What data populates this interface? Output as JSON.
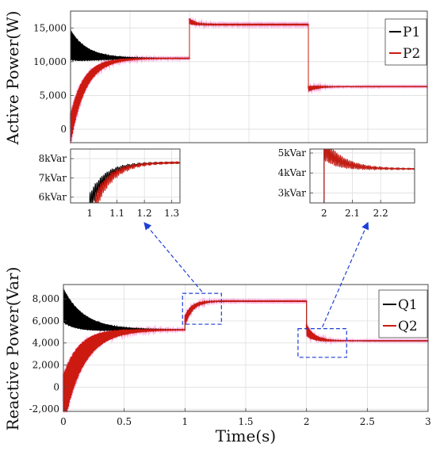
{
  "chart_data": [
    {
      "id": "active",
      "type": "line",
      "ylabel": "Active Power(W)",
      "xlim": [
        0,
        3
      ],
      "ylim": [
        -2000,
        17500
      ],
      "yticks": [
        0,
        5000,
        10000,
        15000
      ],
      "ytick_labels": [
        "0",
        "5,000",
        "10,000",
        "15,000"
      ],
      "legend": "top-right",
      "grid": true,
      "series": [
        {
          "name": "P1",
          "color": "#000000",
          "segments": [
            {
              "t0": 0,
              "t1": 1,
              "initial": 12500,
              "final": 10500,
              "decay": 0.12,
              "amp": 2300
            },
            {
              "t0": 1,
              "t1": 2,
              "initial": 16000,
              "final": 15500,
              "decay": 0.05,
              "amp": 400
            },
            {
              "t0": 2,
              "t1": 3,
              "initial": 6000,
              "final": 6300,
              "decay": 0.06,
              "amp": 400
            }
          ]
        },
        {
          "name": "P2",
          "color": "#cc1a10",
          "segments": [
            {
              "t0": 0,
              "t1": 1,
              "initial": 0,
              "final": 10500,
              "decay": 0.12,
              "amp": 2300
            },
            {
              "t0": 1,
              "t1": 2,
              "initial": 16000,
              "final": 15500,
              "decay": 0.05,
              "amp": 400
            },
            {
              "t0": 2,
              "t1": 3,
              "initial": 6000,
              "final": 6300,
              "decay": 0.06,
              "amp": 400
            }
          ]
        }
      ]
    },
    {
      "id": "zoom1",
      "type": "line",
      "xlim": [
        0.93,
        1.33
      ],
      "ylim": [
        5.7,
        8.5
      ],
      "xticks": [
        1,
        1.1,
        1.2,
        1.3
      ],
      "xtick_labels": [
        "1",
        "1.1",
        "1.2",
        "1.3"
      ],
      "yticks": [
        6,
        7,
        8
      ],
      "ytick_labels": [
        "6kVar",
        "7kVar",
        "8kVar"
      ],
      "grid": true,
      "series": [
        {
          "color": "#000000",
          "t0": 1.0,
          "initial": 5.7,
          "final": 7.8,
          "decay": 0.06,
          "amp": 0.45
        },
        {
          "color": "#cc1a10",
          "t0": 1.02,
          "initial": 5.7,
          "final": 7.8,
          "decay": 0.06,
          "amp": 0.45
        }
      ]
    },
    {
      "id": "zoom2",
      "type": "line",
      "xlim": [
        1.95,
        2.32
      ],
      "ylim": [
        2.5,
        5.2
      ],
      "xticks": [
        2,
        2.1,
        2.2
      ],
      "xtick_labels": [
        "2",
        "2.1",
        "2.2"
      ],
      "yticks": [
        3,
        4,
        5
      ],
      "ytick_labels": [
        "3kVar",
        "4kVar",
        "5kVar"
      ],
      "grid": true,
      "series": [
        {
          "color": "#000000",
          "t0": 2.0,
          "initial": 5.2,
          "final": 4.2,
          "decay": 0.06,
          "amp": 0.5
        },
        {
          "color": "#cc1a10",
          "t0": 2.0,
          "initial": 5.2,
          "final": 4.2,
          "decay": 0.06,
          "amp": 0.55
        }
      ]
    },
    {
      "id": "reactive",
      "type": "line",
      "xlabel": "Time(s)",
      "ylabel": "Reactive Power(Var)",
      "xlim": [
        0,
        3
      ],
      "ylim": [
        -2200,
        9300
      ],
      "xticks": [
        0,
        0.5,
        1,
        1.5,
        2,
        2.5,
        3
      ],
      "xtick_labels": [
        "0",
        "0.5",
        "1",
        "1.5",
        "2",
        "2.5",
        "3"
      ],
      "yticks": [
        -2000,
        0,
        2000,
        4000,
        6000,
        8000
      ],
      "ytick_labels": [
        "-2,000",
        "0",
        "2,000",
        "4,000",
        "6,000",
        "8,000"
      ],
      "legend": "top-right",
      "grid": true,
      "zoom_regions": [
        {
          "x": [
            0.98,
            1.3
          ],
          "y": [
            5700,
            8500
          ],
          "target": "zoom1"
        },
        {
          "x": [
            1.93,
            2.33
          ],
          "y": [
            2700,
            5300
          ],
          "target": "zoom2"
        }
      ],
      "series": [
        {
          "name": "Q1",
          "color": "#000000",
          "segments": [
            {
              "t0": 0,
              "t1": 1,
              "initial": 7400,
              "final": 5200,
              "decay": 0.15,
              "amp": 1600
            },
            {
              "t0": 1,
              "t1": 2,
              "initial": 6000,
              "final": 7800,
              "decay": 0.06,
              "amp": 500
            },
            {
              "t0": 2,
              "t1": 3,
              "initial": 5200,
              "final": 4200,
              "decay": 0.06,
              "amp": 500
            }
          ]
        },
        {
          "name": "Q2",
          "color": "#cc1a10",
          "segments": [
            {
              "t0": 0,
              "t1": 1,
              "initial": -1300,
              "final": 5200,
              "decay": 0.15,
              "amp": 2500
            },
            {
              "t0": 1,
              "t1": 2,
              "initial": 6000,
              "final": 7800,
              "decay": 0.06,
              "amp": 500
            },
            {
              "t0": 2,
              "t1": 3,
              "initial": 5200,
              "final": 4200,
              "decay": 0.06,
              "amp": 550
            }
          ]
        }
      ]
    }
  ]
}
